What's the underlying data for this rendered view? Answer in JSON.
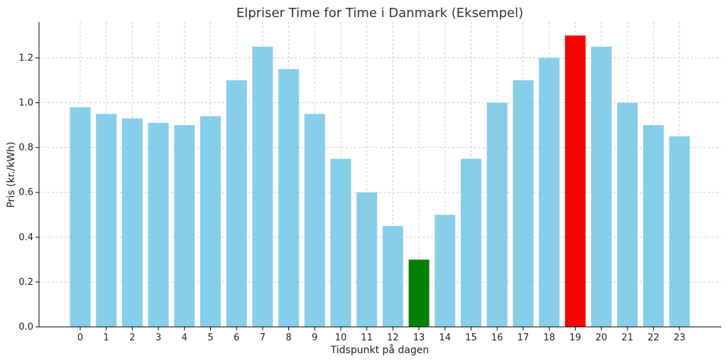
{
  "chart_data": {
    "type": "bar",
    "title": "Elpriser Time for Time i Danmark (Eksempel)",
    "xlabel": "Tidspunkt på dagen",
    "ylabel": "Pris (kr./kWh)",
    "categories": [
      "0",
      "1",
      "2",
      "3",
      "4",
      "5",
      "6",
      "7",
      "8",
      "9",
      "10",
      "11",
      "12",
      "13",
      "14",
      "15",
      "16",
      "17",
      "18",
      "19",
      "20",
      "21",
      "22",
      "23"
    ],
    "values": [
      0.98,
      0.95,
      0.93,
      0.91,
      0.9,
      0.94,
      1.1,
      1.25,
      1.15,
      0.95,
      0.75,
      0.6,
      0.45,
      0.3,
      0.5,
      0.75,
      1.0,
      1.1,
      1.2,
      1.3,
      1.25,
      1.0,
      0.9,
      0.85
    ],
    "ylim": [
      0,
      1.36
    ],
    "yticks": [
      "0.0",
      "0.2",
      "0.4",
      "0.6",
      "0.8",
      "1.0",
      "1.2"
    ],
    "ytick_values": [
      0,
      0.2,
      0.4,
      0.6,
      0.8,
      1.0,
      1.2
    ],
    "grid": true,
    "colors": {
      "default": "#87ceeb",
      "lowest": "#008000",
      "highest": "#ff0000"
    },
    "highlight": {
      "lowest_category": "13",
      "highest_category": "19"
    }
  }
}
